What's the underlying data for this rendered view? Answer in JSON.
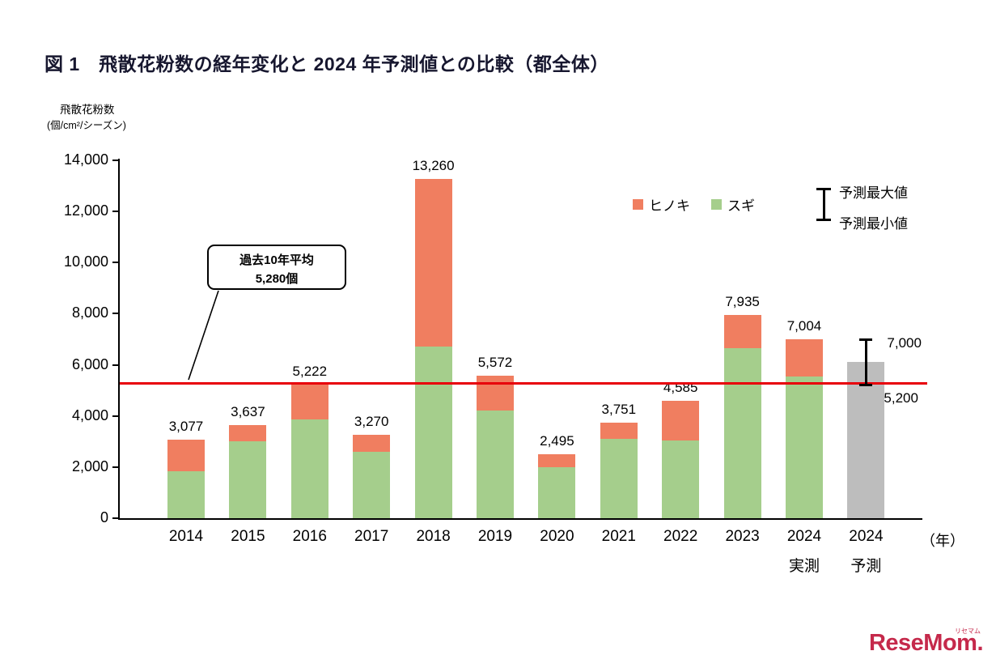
{
  "title": "図 1　飛散花粉数の経年変化と 2024 年予測値との比較（都全体）",
  "y_axis_unit": {
    "line1": "飛散花粉数",
    "line2": "(個/cm²/シーズン)"
  },
  "x_axis_suffix": "（年）",
  "legend": {
    "hinoki": {
      "label": "ヒノキ",
      "color": "#F07E60"
    },
    "sugi": {
      "label": "スギ",
      "color": "#A5CE8C"
    }
  },
  "error_legend": {
    "max_label": "予測最大値",
    "min_label": "予測最小値"
  },
  "average_callout": {
    "line1": "過去10年平均",
    "line2": "5,280個"
  },
  "chart_data": {
    "type": "bar",
    "stacked": true,
    "title": "飛散花粉数の経年変化と2024年予測値との比較（都全体）",
    "ylabel": "飛散花粉数(個/cm²/シーズン)",
    "xlabel": "年",
    "ylim": [
      0,
      14000
    ],
    "ytick_step": 2000,
    "grid": false,
    "legend_position": "top-right",
    "categories": [
      "2014",
      "2015",
      "2016",
      "2017",
      "2018",
      "2019",
      "2020",
      "2021",
      "2022",
      "2023",
      "2024 実測",
      "2024 予測"
    ],
    "x_labels": [
      [
        "2014"
      ],
      [
        "2015"
      ],
      [
        "2016"
      ],
      [
        "2017"
      ],
      [
        "2018"
      ],
      [
        "2019"
      ],
      [
        "2020"
      ],
      [
        "2021"
      ],
      [
        "2022"
      ],
      [
        "2023"
      ],
      [
        "2024",
        "実測"
      ],
      [
        "2024",
        "予測"
      ]
    ],
    "series": [
      {
        "name": "スギ",
        "color": "#A5CE8C",
        "values": [
          1850,
          3000,
          3850,
          2600,
          6700,
          4200,
          2000,
          3100,
          3050,
          6650,
          5550,
          null
        ]
      },
      {
        "name": "ヒノキ",
        "color": "#F07E60",
        "values": [
          1227,
          637,
          1372,
          670,
          6560,
          1372,
          495,
          651,
          1535,
          1285,
          1454,
          null
        ]
      }
    ],
    "totals": [
      3077,
      3637,
      5222,
      3270,
      13260,
      5572,
      2495,
      3751,
      4585,
      7935,
      7004,
      null
    ],
    "total_labels": [
      "3,077",
      "3,637",
      "5,222",
      "3,270",
      "13,260",
      "5,572",
      "2,495",
      "3,751",
      "4,585",
      "7,935",
      "7,004",
      ""
    ],
    "forecast": {
      "category_index": 11,
      "value": 6100,
      "bar_color": "#BDBDBD",
      "max": 7000,
      "min": 5200,
      "max_label": "7,000",
      "min_label": "5,200"
    },
    "average_line": {
      "value": 5280,
      "color": "#E8000B",
      "label": "過去10年平均 5,280個"
    }
  },
  "logo": {
    "text": "ReseMom.",
    "ruby": "リセマム"
  }
}
